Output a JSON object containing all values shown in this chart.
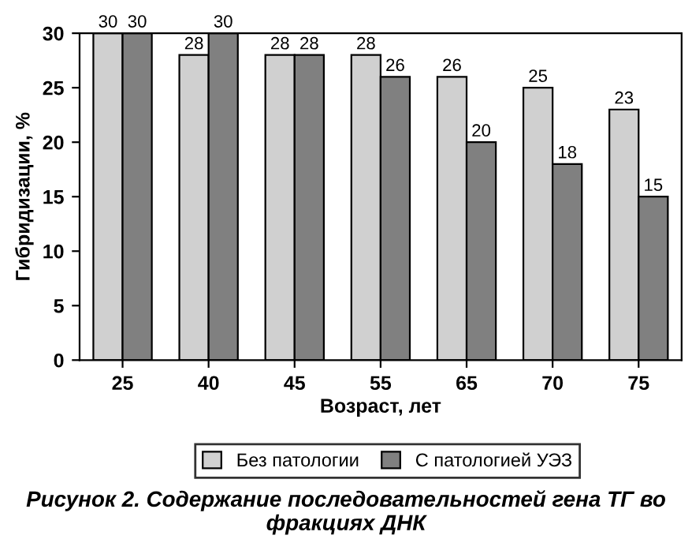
{
  "chart_data": {
    "type": "bar",
    "xlabel": "Возраст, лет",
    "ylabel": "Гибридизации, %",
    "categories": [
      "25",
      "40",
      "45",
      "55",
      "65",
      "70",
      "75"
    ],
    "series": [
      {
        "name": "Без патологии",
        "color": "#d0d0d0",
        "values": [
          30,
          28,
          28,
          28,
          26,
          25,
          23
        ]
      },
      {
        "name": "С патологией УЭЗ",
        "color": "#808080",
        "values": [
          30,
          30,
          28,
          26,
          20,
          18,
          15
        ]
      }
    ],
    "ylim": [
      0,
      30
    ],
    "yticks": [
      0,
      5,
      10,
      15,
      20,
      25,
      30
    ],
    "grid": false,
    "legend": "bottom",
    "data_labels": true,
    "annotations": [
      "Рисунок 2. Содержание последовательностей гена ТГ во фракциях ДНК"
    ]
  }
}
